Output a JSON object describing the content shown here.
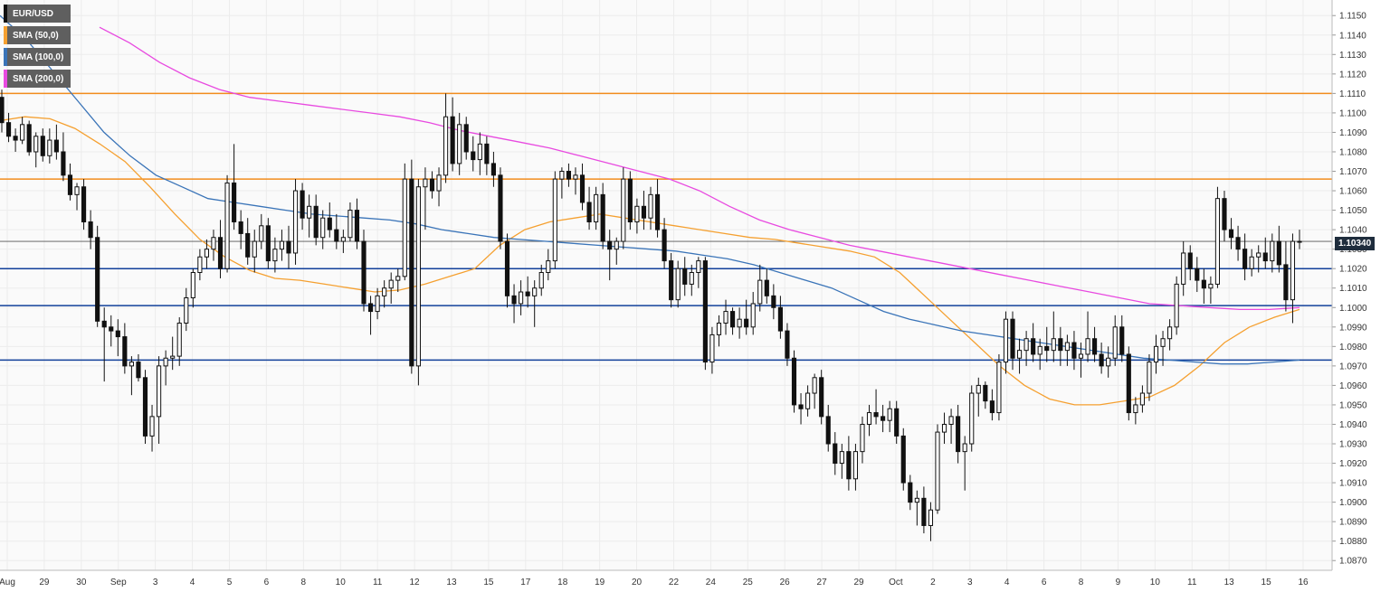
{
  "colors": {
    "background": "#ffffff",
    "plot_bg": "#fafafa",
    "grid": "#ececec",
    "candle": "#111111",
    "sma50": "#f5a030",
    "sma100": "#3a74b8",
    "sma200": "#e84ae0",
    "resistance": "#f28c1c",
    "support": "#12409a",
    "axis_text": "#333333",
    "price_tag_bg": "#1f2d3d"
  },
  "legend": [
    {
      "label": "EUR/USD",
      "color": "#111111"
    },
    {
      "label": "SMA (50,0)",
      "color": "#f5a030"
    },
    {
      "label": "SMA (100,0)",
      "color": "#3a74b8"
    },
    {
      "label": "SMA (200,0)",
      "color": "#e84ae0"
    }
  ],
  "price_tag": "1.10340",
  "chart_data": {
    "type": "candlestick",
    "symbol": "EUR/USD",
    "ylim": [
      1.0865,
      1.1158
    ],
    "yticks": [
      "1.1150",
      "1.1140",
      "1.1130",
      "1.1120",
      "1.1110",
      "1.1100",
      "1.1090",
      "1.1080",
      "1.1070",
      "1.1060",
      "1.1050",
      "1.1040",
      "1.1030",
      "1.1020",
      "1.1010",
      "1.1000",
      "1.0990",
      "1.0980",
      "1.0970",
      "1.0960",
      "1.0950",
      "1.0940",
      "1.0930",
      "1.0920",
      "1.0910",
      "1.0900",
      "1.0890",
      "1.0880",
      "1.0870"
    ],
    "xticks": [
      "Aug",
      "29",
      "30",
      "Sep",
      "3",
      "4",
      "5",
      "6",
      "8",
      "10",
      "11",
      "12",
      "13",
      "15",
      "17",
      "18",
      "19",
      "20",
      "22",
      "24",
      "25",
      "26",
      "27",
      "29",
      "Oct",
      "2",
      "3",
      "4",
      "6",
      "8",
      "9",
      "10",
      "11",
      "13",
      "15",
      "16"
    ],
    "last_price": 1.1034,
    "horizontal_levels": [
      {
        "value": 1.111,
        "kind": "resistance"
      },
      {
        "value": 1.1066,
        "kind": "resistance"
      },
      {
        "value": 1.102,
        "kind": "support"
      },
      {
        "value": 1.1001,
        "kind": "support"
      },
      {
        "value": 1.0973,
        "kind": "support"
      }
    ],
    "ohlc": [
      [
        1.1108,
        1.1112,
        1.109,
        1.1095
      ],
      [
        1.1095,
        1.11,
        1.1085,
        1.1088
      ],
      [
        1.1088,
        1.1092,
        1.108,
        1.1086
      ],
      [
        1.1086,
        1.1098,
        1.1084,
        1.1094
      ],
      [
        1.1094,
        1.1096,
        1.1078,
        1.108
      ],
      [
        1.108,
        1.109,
        1.1072,
        1.1088
      ],
      [
        1.1088,
        1.1092,
        1.1075,
        1.1078
      ],
      [
        1.1078,
        1.1092,
        1.1074,
        1.1086
      ],
      [
        1.1086,
        1.1094,
        1.1076,
        1.108
      ],
      [
        1.108,
        1.109,
        1.1065,
        1.1068
      ],
      [
        1.1068,
        1.1074,
        1.1055,
        1.1058
      ],
      [
        1.1058,
        1.1064,
        1.105,
        1.1062
      ],
      [
        1.1062,
        1.1066,
        1.104,
        1.1044
      ],
      [
        1.1044,
        1.105,
        1.103,
        1.1036
      ],
      [
        1.1036,
        1.1042,
        1.099,
        1.0993
      ],
      [
        1.0993,
        1.1,
        1.0962,
        1.099
      ],
      [
        1.099,
        1.0996,
        1.098,
        1.0988
      ],
      [
        1.0988,
        1.0994,
        1.0975,
        1.0985
      ],
      [
        1.0985,
        1.0992,
        1.0966,
        1.097
      ],
      [
        1.097,
        1.0975,
        1.0955,
        1.0972
      ],
      [
        1.0972,
        1.0976,
        1.0962,
        1.0964
      ],
      [
        1.0964,
        1.0968,
        1.093,
        1.0934
      ],
      [
        1.0934,
        1.095,
        1.0926,
        1.0944
      ],
      [
        1.0944,
        1.0975,
        1.093,
        1.097
      ],
      [
        1.097,
        1.0978,
        1.096,
        1.0974
      ],
      [
        1.0974,
        1.0985,
        1.0968,
        1.0975
      ],
      [
        1.0975,
        1.0995,
        1.097,
        1.0992
      ],
      [
        1.0992,
        1.101,
        1.0988,
        1.1005
      ],
      [
        1.1005,
        1.102,
        1.1,
        1.1018
      ],
      [
        1.1018,
        1.103,
        1.1014,
        1.1026
      ],
      [
        1.1026,
        1.1035,
        1.102,
        1.103
      ],
      [
        1.103,
        1.104,
        1.1024,
        1.1036
      ],
      [
        1.1036,
        1.1045,
        1.1015,
        1.102
      ],
      [
        1.102,
        1.1068,
        1.1018,
        1.1064
      ],
      [
        1.1064,
        1.1084,
        1.104,
        1.1044
      ],
      [
        1.1044,
        1.105,
        1.103,
        1.1038
      ],
      [
        1.1038,
        1.1046,
        1.1022,
        1.1026
      ],
      [
        1.1026,
        1.104,
        1.1018,
        1.1034
      ],
      [
        1.1034,
        1.1048,
        1.103,
        1.1042
      ],
      [
        1.1042,
        1.1046,
        1.102,
        1.1024
      ],
      [
        1.1024,
        1.1036,
        1.1018,
        1.103
      ],
      [
        1.103,
        1.104,
        1.1024,
        1.1034
      ],
      [
        1.1034,
        1.1042,
        1.102,
        1.1028
      ],
      [
        1.1028,
        1.1066,
        1.1022,
        1.106
      ],
      [
        1.106,
        1.1064,
        1.104,
        1.1046
      ],
      [
        1.1046,
        1.1058,
        1.1036,
        1.1052
      ],
      [
        1.1052,
        1.1058,
        1.1032,
        1.1036
      ],
      [
        1.1036,
        1.105,
        1.103,
        1.1046
      ],
      [
        1.1046,
        1.1054,
        1.1036,
        1.104
      ],
      [
        1.104,
        1.1048,
        1.103,
        1.1034
      ],
      [
        1.1034,
        1.104,
        1.1028,
        1.1036
      ],
      [
        1.1036,
        1.1054,
        1.1034,
        1.105
      ],
      [
        1.105,
        1.1056,
        1.103,
        1.1034
      ],
      [
        1.1034,
        1.104,
        1.0998,
        1.1002
      ],
      [
        1.1002,
        1.1006,
        1.0986,
        1.0998
      ],
      [
        1.0998,
        1.101,
        1.0994,
        1.1006
      ],
      [
        1.1006,
        1.1014,
        1.1,
        1.101
      ],
      [
        1.101,
        1.1018,
        1.1002,
        1.1014
      ],
      [
        1.1014,
        1.102,
        1.1008,
        1.1016
      ],
      [
        1.1016,
        1.1074,
        1.1014,
        1.1066
      ],
      [
        1.1066,
        1.1076,
        1.0966,
        1.097
      ],
      [
        1.097,
        1.1066,
        1.096,
        1.1062
      ],
      [
        1.1062,
        1.1072,
        1.104,
        1.1066
      ],
      [
        1.1066,
        1.107,
        1.1056,
        1.106
      ],
      [
        1.106,
        1.1072,
        1.1052,
        1.1068
      ],
      [
        1.1068,
        1.111,
        1.1064,
        1.1098
      ],
      [
        1.1098,
        1.1108,
        1.107,
        1.1074
      ],
      [
        1.1074,
        1.11,
        1.1068,
        1.1094
      ],
      [
        1.1094,
        1.1098,
        1.1076,
        1.108
      ],
      [
        1.108,
        1.1088,
        1.107,
        1.1076
      ],
      [
        1.1076,
        1.109,
        1.1068,
        1.1084
      ],
      [
        1.1084,
        1.1088,
        1.1068,
        1.1074
      ],
      [
        1.1074,
        1.108,
        1.1062,
        1.1068
      ],
      [
        1.1068,
        1.1072,
        1.103,
        1.1034
      ],
      [
        1.1034,
        1.1038,
        1.1,
        1.1006
      ],
      [
        1.1006,
        1.1012,
        1.0992,
        1.1002
      ],
      [
        1.1002,
        1.1014,
        1.0996,
        1.1008
      ],
      [
        1.1008,
        1.1016,
        1.1,
        1.1006
      ],
      [
        1.1006,
        1.1014,
        1.099,
        1.101
      ],
      [
        1.101,
        1.1022,
        1.1006,
        1.1018
      ],
      [
        1.1018,
        1.103,
        1.1014,
        1.1024
      ],
      [
        1.1024,
        1.107,
        1.102,
        1.1066
      ],
      [
        1.1066,
        1.1072,
        1.1056,
        1.107
      ],
      [
        1.107,
        1.1074,
        1.1062,
        1.1066
      ],
      [
        1.1066,
        1.1072,
        1.1058,
        1.1068
      ],
      [
        1.1068,
        1.1074,
        1.105,
        1.1054
      ],
      [
        1.1054,
        1.1062,
        1.104,
        1.1044
      ],
      [
        1.1044,
        1.1062,
        1.104,
        1.1058
      ],
      [
        1.1058,
        1.1064,
        1.103,
        1.1034
      ],
      [
        1.1034,
        1.104,
        1.1014,
        1.103
      ],
      [
        1.103,
        1.1036,
        1.1022,
        1.1034
      ],
      [
        1.1034,
        1.1072,
        1.103,
        1.1066
      ],
      [
        1.1066,
        1.107,
        1.104,
        1.1044
      ],
      [
        1.1044,
        1.1056,
        1.1038,
        1.1052
      ],
      [
        1.1052,
        1.106,
        1.104,
        1.1046
      ],
      [
        1.1046,
        1.1062,
        1.104,
        1.1058
      ],
      [
        1.1058,
        1.1066,
        1.1036,
        1.104
      ],
      [
        1.104,
        1.1046,
        1.102,
        1.1024
      ],
      [
        1.1024,
        1.1028,
        1.1,
        1.1004
      ],
      [
        1.1004,
        1.1024,
        1.1,
        1.102
      ],
      [
        1.102,
        1.1026,
        1.1006,
        1.1012
      ],
      [
        1.1012,
        1.1022,
        1.1006,
        1.1018
      ],
      [
        1.1018,
        1.1026,
        1.101,
        1.1024
      ],
      [
        1.1024,
        1.1026,
        1.0968,
        1.0972
      ],
      [
        1.0972,
        1.099,
        1.0966,
        1.0986
      ],
      [
        1.0986,
        1.0996,
        1.098,
        1.0992
      ],
      [
        1.0992,
        1.1004,
        1.0986,
        1.0998
      ],
      [
        1.0998,
        1.1,
        1.0986,
        1.099
      ],
      [
        1.099,
        1.1,
        1.0984,
        1.0994
      ],
      [
        1.0994,
        1.1004,
        1.0986,
        1.099
      ],
      [
        1.099,
        1.1008,
        1.0986,
        1.1002
      ],
      [
        1.1002,
        1.1022,
        1.0998,
        1.1014
      ],
      [
        1.1014,
        1.102,
        1.1002,
        1.1006
      ],
      [
        1.1006,
        1.1012,
        1.0994,
        1.1
      ],
      [
        1.1,
        1.1006,
        1.0984,
        1.0988
      ],
      [
        1.0988,
        1.0992,
        1.097,
        1.0974
      ],
      [
        1.0974,
        1.0978,
        1.0946,
        1.095
      ],
      [
        1.095,
        1.0956,
        1.094,
        1.0948
      ],
      [
        1.0948,
        1.096,
        1.0944,
        1.0956
      ],
      [
        1.0956,
        1.0966,
        1.0948,
        1.0964
      ],
      [
        1.0964,
        1.0968,
        1.094,
        1.0944
      ],
      [
        1.0944,
        1.095,
        1.0926,
        1.093
      ],
      [
        1.093,
        1.0936,
        1.0914,
        1.092
      ],
      [
        1.092,
        1.093,
        1.0912,
        1.0926
      ],
      [
        1.0926,
        1.0934,
        1.0906,
        1.0912
      ],
      [
        1.0912,
        1.093,
        1.0906,
        1.0926
      ],
      [
        1.0926,
        1.0944,
        1.092,
        1.094
      ],
      [
        1.094,
        1.095,
        1.0934,
        1.0946
      ],
      [
        1.0946,
        1.0958,
        1.094,
        1.0944
      ],
      [
        1.0944,
        1.095,
        1.0936,
        1.0942
      ],
      [
        1.0942,
        1.0952,
        1.0936,
        1.0948
      ],
      [
        1.0948,
        1.0952,
        1.093,
        1.0934
      ],
      [
        1.0934,
        1.0938,
        1.0906,
        1.091
      ],
      [
        1.091,
        1.0914,
        1.0896,
        1.09
      ],
      [
        1.09,
        1.0906,
        1.0888,
        1.0902
      ],
      [
        1.0902,
        1.0908,
        1.0884,
        1.0888
      ],
      [
        1.0888,
        1.09,
        1.088,
        1.0896
      ],
      [
        1.0896,
        1.094,
        1.0894,
        1.0936
      ],
      [
        1.0936,
        1.0946,
        1.093,
        1.094
      ],
      [
        1.094,
        1.0948,
        1.093,
        1.0944
      ],
      [
        1.0944,
        1.095,
        1.092,
        1.0926
      ],
      [
        1.0926,
        1.0934,
        1.0906,
        1.093
      ],
      [
        1.093,
        1.096,
        1.0926,
        1.0956
      ],
      [
        1.0956,
        1.0964,
        1.0944,
        1.096
      ],
      [
        1.096,
        1.0962,
        1.0948,
        1.0952
      ],
      [
        1.0952,
        1.0958,
        1.0942,
        1.0946
      ],
      [
        1.0946,
        1.0976,
        1.0942,
        1.0972
      ],
      [
        1.0972,
        1.0998,
        1.0966,
        1.0994
      ],
      [
        1.0994,
        1.0998,
        1.0968,
        1.0974
      ],
      [
        1.0974,
        1.0984,
        1.0966,
        1.0978
      ],
      [
        1.0978,
        1.0988,
        1.097,
        1.0984
      ],
      [
        1.0984,
        1.0992,
        1.0972,
        1.0976
      ],
      [
        1.0976,
        1.0984,
        1.0968,
        1.098
      ],
      [
        1.098,
        1.099,
        1.0972,
        1.0978
      ],
      [
        1.0978,
        1.0998,
        1.0972,
        1.0984
      ],
      [
        1.0984,
        1.099,
        1.097,
        1.0978
      ],
      [
        1.0978,
        1.0986,
        1.097,
        1.0982
      ],
      [
        1.0982,
        1.0988,
        1.0968,
        1.0974
      ],
      [
        1.0974,
        1.0982,
        1.0964,
        1.0976
      ],
      [
        1.0976,
        1.0998,
        1.0972,
        1.0984
      ],
      [
        1.0984,
        1.099,
        1.0972,
        1.0976
      ],
      [
        1.0976,
        1.0982,
        1.0966,
        1.097
      ],
      [
        1.097,
        1.098,
        1.0964,
        1.0974
      ],
      [
        1.0974,
        1.0996,
        1.097,
        1.099
      ],
      [
        1.099,
        1.0996,
        1.0972,
        1.0976
      ],
      [
        1.0976,
        1.098,
        1.0942,
        1.0946
      ],
      [
        1.0946,
        1.0954,
        1.094,
        1.095
      ],
      [
        1.095,
        1.096,
        1.0946,
        1.0956
      ],
      [
        1.0956,
        1.0976,
        1.0952,
        1.0972
      ],
      [
        1.0972,
        1.0986,
        1.0966,
        1.098
      ],
      [
        1.098,
        1.0988,
        1.097,
        1.0984
      ],
      [
        1.0984,
        1.0994,
        1.0978,
        1.099
      ],
      [
        1.099,
        1.1016,
        1.0986,
        1.1012
      ],
      [
        1.1012,
        1.1034,
        1.1006,
        1.1028
      ],
      [
        1.1028,
        1.1032,
        1.1014,
        1.102
      ],
      [
        1.102,
        1.1026,
        1.1008,
        1.1014
      ],
      [
        1.1014,
        1.102,
        1.1002,
        1.101
      ],
      [
        1.101,
        1.1016,
        1.1002,
        1.1012
      ],
      [
        1.1012,
        1.1062,
        1.101,
        1.1056
      ],
      [
        1.1056,
        1.106,
        1.1034,
        1.104
      ],
      [
        1.104,
        1.1046,
        1.103,
        1.1036
      ],
      [
        1.1036,
        1.1042,
        1.1024,
        1.103
      ],
      [
        1.103,
        1.1038,
        1.1014,
        1.102
      ],
      [
        1.102,
        1.103,
        1.1016,
        1.1026
      ],
      [
        1.1026,
        1.1032,
        1.1018,
        1.1028
      ],
      [
        1.1028,
        1.1036,
        1.102,
        1.1024
      ],
      [
        1.1024,
        1.1038,
        1.1018,
        1.1034
      ],
      [
        1.1034,
        1.1042,
        1.1018,
        1.1022
      ],
      [
        1.1022,
        1.1034,
        1.0998,
        1.1004
      ],
      [
        1.1004,
        1.1038,
        1.0992,
        1.1034
      ],
      [
        1.1034,
        1.104,
        1.103,
        1.1034
      ]
    ],
    "series": [
      {
        "name": "SMA (50,0)",
        "values": [
          1.1096,
          1.1098,
          1.1097,
          1.1092,
          1.1084,
          1.1075,
          1.1062,
          1.1048,
          1.1035,
          1.1026,
          1.1019,
          1.1015,
          1.1014,
          1.1012,
          1.101,
          1.1008,
          1.1009,
          1.1012,
          1.1016,
          1.102,
          1.1032,
          1.104,
          1.1044,
          1.1046,
          1.1048,
          1.1046,
          1.1044,
          1.1042,
          1.104,
          1.1038,
          1.1036,
          1.1035,
          1.1033,
          1.1031,
          1.1029,
          1.1026,
          1.1018,
          1.1006,
          1.0994,
          1.0982,
          1.097,
          1.096,
          1.0953,
          1.095,
          1.095,
          1.0952,
          1.0954,
          1.096,
          1.097,
          1.0982,
          1.099,
          1.0995,
          1.0999
        ]
      },
      {
        "name": "SMA (100,0)",
        "values": [
          1.115,
          1.1138,
          1.1122,
          1.1106,
          1.109,
          1.1078,
          1.1068,
          1.1062,
          1.1056,
          1.1054,
          1.1052,
          1.105,
          1.1048,
          1.1047,
          1.1046,
          1.1045,
          1.1043,
          1.104,
          1.1038,
          1.1036,
          1.1035,
          1.1034,
          1.1033,
          1.1032,
          1.1031,
          1.103,
          1.1029,
          1.1027,
          1.1025,
          1.1022,
          1.1018,
          1.1014,
          1.101,
          1.1004,
          1.0998,
          1.0994,
          1.0991,
          1.0988,
          1.0986,
          1.0984,
          1.0982,
          1.098,
          1.0978,
          1.0976,
          1.0974,
          1.0973,
          1.0972,
          1.0971,
          1.0971,
          1.0972,
          1.0973
        ]
      },
      {
        "name": "SMA (200,0)",
        "values": [
          1.1144,
          1.1136,
          1.1126,
          1.1118,
          1.1112,
          1.1108,
          1.1106,
          1.1104,
          1.1102,
          1.11,
          1.1098,
          1.1095,
          1.1091,
          1.1088,
          1.1085,
          1.1082,
          1.1078,
          1.1074,
          1.107,
          1.1066,
          1.106,
          1.1052,
          1.1045,
          1.104,
          1.1036,
          1.1032,
          1.1029,
          1.1026,
          1.1023,
          1.102,
          1.1017,
          1.1014,
          1.1011,
          1.1008,
          1.1005,
          1.1002,
          1.1001,
          1.1,
          1.0999,
          1.0999,
          1.1
        ]
      }
    ]
  }
}
